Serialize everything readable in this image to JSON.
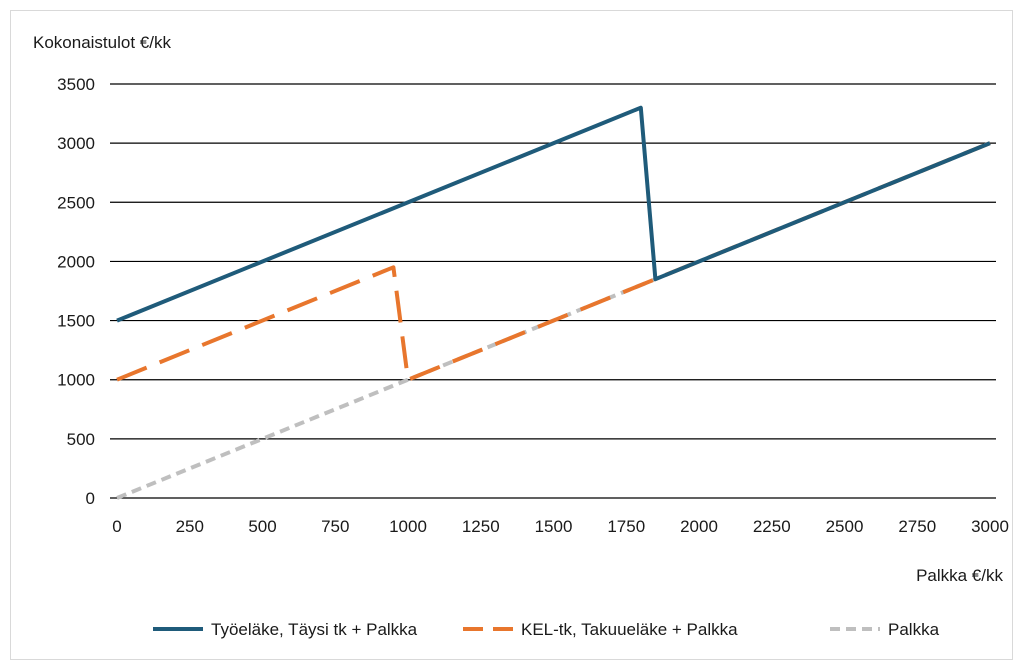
{
  "chart_data": {
    "type": "line",
    "ylabel": "Kokonaistulot €/kk",
    "xlabel": "Palkka €/kk",
    "xlim": [
      0,
      3000
    ],
    "ylim": [
      0,
      3500
    ],
    "x_ticks": [
      0,
      250,
      500,
      750,
      1000,
      1250,
      1500,
      1750,
      2000,
      2250,
      2500,
      2750,
      3000
    ],
    "y_ticks": [
      0,
      500,
      1000,
      1500,
      2000,
      2500,
      3000,
      3500
    ],
    "grid": "horizontal",
    "legend_position": "bottom",
    "series": [
      {
        "name": "Työeläke, Täysi tk + Palkka",
        "color": "#1f5b7a",
        "style": "solid",
        "points": [
          [
            0,
            1500
          ],
          [
            1800,
            3300
          ],
          [
            1850,
            1850
          ],
          [
            3000,
            3000
          ]
        ]
      },
      {
        "name": "KEL-tk, Takuueläke + Palkka",
        "color": "#e8762d",
        "style": "dashed",
        "points": [
          [
            0,
            1000
          ],
          [
            950,
            1950
          ],
          [
            1000,
            1000
          ],
          [
            3000,
            3000
          ]
        ]
      },
      {
        "name": "Palkka",
        "color": "#bfbfbf",
        "style": "dashed",
        "points": [
          [
            0,
            0
          ],
          [
            3000,
            3000
          ]
        ]
      }
    ]
  }
}
